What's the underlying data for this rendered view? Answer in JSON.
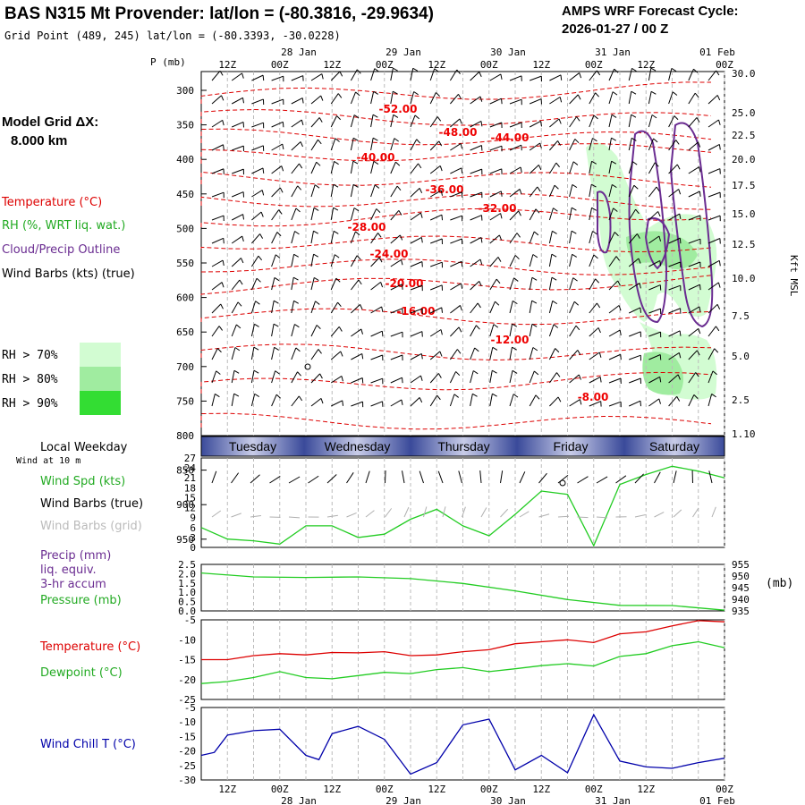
{
  "header": {
    "title": "BAS N315 Mt Provender:  lat/lon = (-80.3816, -29.9634)",
    "subtitle": "Grid Point (489, 245) lat/lon = (-80.3393, -30.0228)",
    "cycle_label": "AMPS WRF Forecast Cycle:",
    "cycle_value": "2026-01-27 / 00  Z"
  },
  "legend": {
    "grid_label": "Model Grid ΔX:",
    "grid_value": "8.000 km",
    "temperature": "Temperature (°C)",
    "rh": "RH (%, WRT liq. wat.)",
    "cloud": "Cloud/Precip Outline",
    "wind": "Wind Barbs (kts) (true)",
    "rh70": "RH > 70%",
    "rh80": "RH > 80%",
    "rh90": "RH > 90%",
    "rh_colors": [
      "#d2fcd2",
      "#a0eca0",
      "#33dd33"
    ]
  },
  "time_axis": {
    "top_ticks": [
      "12Z",
      "00Z",
      "12Z",
      "00Z",
      "12Z",
      "00Z",
      "12Z",
      "00Z",
      "12Z",
      "00Z"
    ],
    "dates": [
      "28 Jan",
      "29 Jan",
      "30 Jan",
      "31 Jan",
      "01 Feb"
    ],
    "days": [
      "Tuesday",
      "Wednesday",
      "Thursday",
      "Friday",
      "Saturday"
    ]
  },
  "colors": {
    "temp": "#dd0000",
    "rh_green": "#22bb22",
    "cloud": "#6a2c91",
    "spd": "#22cc22",
    "dew": "#22cc22",
    "wchill": "#0000aa",
    "grid_wind": "#b0b0b0",
    "day_bar_dark": "#3a4a9a",
    "day_bar_light": "#c8cce8"
  },
  "chart_data": [
    {
      "type": "contour",
      "panel": "sounding",
      "p_label": "P (mb)",
      "right_label": "Kft MSL",
      "pressure_ticks": [
        "300",
        "350",
        "400",
        "450",
        "500",
        "550",
        "600",
        "650",
        "700",
        "750",
        "800",
        "850",
        "900",
        "950"
      ],
      "height_ticks": [
        "30.0",
        "25.0",
        "22.5",
        "20.0",
        "17.5",
        "15.0",
        "12.5",
        "10.0",
        "7.5",
        "5.0",
        "2.5",
        "1.10"
      ],
      "temperature_contours": [
        "-52.00",
        "-48.00",
        "-44.00",
        "-40.00",
        "-36.00",
        "-32.00",
        "-28.00",
        "-24.00",
        "-20.00",
        "-16.00",
        "-12.00",
        "-8.00"
      ],
      "x_hours_range": [
        0,
        120
      ]
    },
    {
      "type": "line",
      "panel": "surface-wind",
      "header": "Local Weekday",
      "sublabel": "Wind at 10 m",
      "labels": {
        "spd": "Wind Spd (kts)",
        "barbs_true": "Wind Barbs (true)",
        "barbs_grid": "Wind Barbs (grid)"
      },
      "y_ticks": [
        "27",
        "24",
        "21",
        "18",
        "15",
        "12",
        "9",
        "6",
        "3",
        "0"
      ],
      "ylim": [
        0,
        27
      ],
      "x_hours": [
        0,
        6,
        12,
        18,
        24,
        30,
        36,
        42,
        48,
        54,
        60,
        66,
        72,
        78,
        84,
        90,
        96,
        102,
        108,
        114,
        120
      ],
      "series": [
        {
          "values": [
            6,
            2.5,
            2,
            1,
            6.5,
            6.5,
            3,
            4,
            8.5,
            11.5,
            6.5,
            3.5,
            10,
            17,
            16,
            0.5,
            19,
            22,
            24.5,
            23,
            21
          ]
        }
      ]
    },
    {
      "type": "line",
      "panel": "pressure",
      "labels": {
        "precip": "Precip (mm)",
        "liq": "liq. equiv.",
        "accum": "3-hr accum",
        "pressure": "Pressure (mb)"
      },
      "left_ticks": [
        "2.5",
        "2.0",
        "1.5",
        "1.0",
        "0.5",
        "0.0"
      ],
      "right_ticks": [
        "955",
        "950",
        "945",
        "940",
        "935"
      ],
      "right_unit": "(mb)",
      "ylim": [
        935,
        955
      ],
      "x_hours": [
        0,
        12,
        24,
        36,
        48,
        60,
        72,
        84,
        96,
        108,
        120
      ],
      "series": [
        {
          "values": [
            951.3,
            949.6,
            949.4,
            949.6,
            948.9,
            946.8,
            943.6,
            939.9,
            937.4,
            937.3,
            935.3
          ]
        }
      ]
    },
    {
      "type": "line",
      "panel": "temperature",
      "labels": {
        "temp": "Temperature (°C)",
        "dew": "Dewpoint (°C)"
      },
      "y_ticks": [
        "-5",
        "-10",
        "-15",
        "-20",
        "-25"
      ],
      "ylim": [
        -25,
        -5
      ],
      "x_hours": [
        0,
        6,
        12,
        18,
        24,
        30,
        36,
        42,
        48,
        54,
        60,
        66,
        72,
        78,
        84,
        90,
        96,
        102,
        108,
        114,
        120
      ],
      "series": [
        {
          "name": "Temperature",
          "values": [
            -15,
            -15,
            -14,
            -13.5,
            -13.8,
            -13.2,
            -13.3,
            -13,
            -14,
            -13.8,
            -13,
            -12.5,
            -11,
            -10.5,
            -10,
            -10.7,
            -8.5,
            -8,
            -6.5,
            -5.2,
            -5.5
          ]
        },
        {
          "name": "Dewpoint",
          "values": [
            -21,
            -20.5,
            -19.5,
            -18,
            -19.5,
            -19.8,
            -19,
            -18.2,
            -18.5,
            -17.5,
            -17,
            -18,
            -17.3,
            -16.5,
            -16,
            -16.6,
            -14.2,
            -13.5,
            -11.5,
            -10.5,
            -12
          ]
        }
      ]
    },
    {
      "type": "line",
      "panel": "wind-chill",
      "labels": {
        "wchill": "Wind Chill T (°C)"
      },
      "y_ticks": [
        "-5",
        "-10",
        "-15",
        "-20",
        "-25",
        "-30"
      ],
      "ylim": [
        -30,
        -5
      ],
      "x_hours": [
        0,
        3,
        6,
        12,
        18,
        24,
        27,
        30,
        36,
        42,
        48,
        54,
        60,
        66,
        72,
        78,
        84,
        90,
        96,
        102,
        108,
        114,
        120
      ],
      "series": [
        {
          "values": [
            -21.5,
            -20.5,
            -14.5,
            -13,
            -12.5,
            -21.5,
            -23,
            -14,
            -11.5,
            -16,
            -28,
            -24,
            -11,
            -9,
            -26.5,
            -21.5,
            -27.5,
            -7.5,
            -23.5,
            -25.5,
            -26,
            -24,
            -22.5
          ]
        }
      ]
    }
  ],
  "bottom_axis": {
    "ticks": [
      "12Z",
      "00Z",
      "12Z",
      "00Z",
      "12Z",
      "00Z",
      "12Z",
      "00Z",
      "12Z",
      "00Z"
    ],
    "dates": [
      "28 Jan",
      "29 Jan",
      "30 Jan",
      "31 Jan",
      "01 Feb"
    ]
  }
}
